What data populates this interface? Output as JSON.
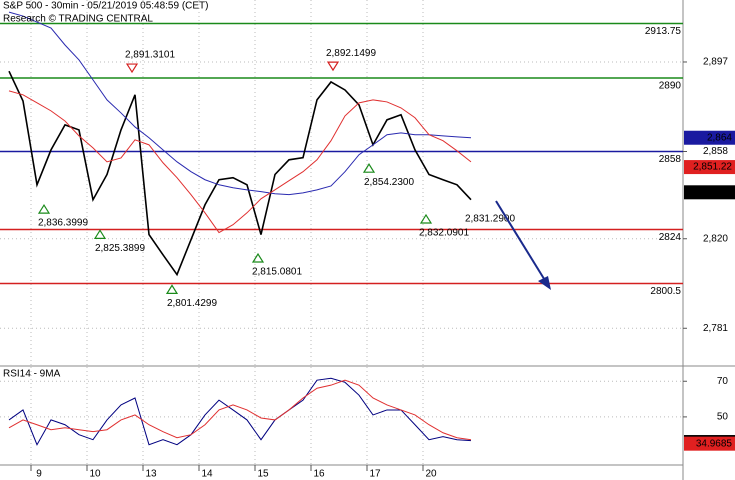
{
  "chart_data": [
    {
      "type": "line",
      "title": "S&P 500 - 30min - 05/21/2019 05:48:59 (CET)",
      "subtitle": "Research © TRADING CENTRAL",
      "categories": [
        null,
        null,
        "9",
        null,
        null,
        null,
        "10",
        null,
        null,
        null,
        "13",
        null,
        null,
        null,
        "14",
        null,
        null,
        null,
        "15",
        null,
        null,
        null,
        "16",
        null,
        null,
        null,
        "17",
        null,
        null,
        null,
        "20",
        null,
        null,
        null
      ],
      "series": [
        {
          "color": "#000000",
          "values": [
            2893,
            2880,
            2843.5,
            2858.7,
            2869.6,
            2867.4,
            2837,
            2848,
            2867.4,
            2882.7,
            2821.8,
            2813,
            2804.4,
            2819.6,
            2834.8,
            2845.7,
            2846.6,
            2843.5,
            2821.8,
            2848,
            2854.4,
            2855.3,
            2880.5,
            2888.3,
            2884.8,
            2878.3,
            2860.9,
            2871.8,
            2874,
            2858.7,
            2848,
            2845.7,
            2843.5,
            2837
          ]
        },
        {
          "color": "#2a2ab0",
          "values": [
            2918.7,
            2917,
            2914.4,
            2911.8,
            2904.4,
            2897.9,
            2889.2,
            2880.5,
            2874.8,
            2868.7,
            2864,
            2858.7,
            2853.5,
            2849.2,
            2845.7,
            2843.5,
            2842.2,
            2841.3,
            2840.5,
            2839.6,
            2839.2,
            2840,
            2841.3,
            2843,
            2849.2,
            2856.6,
            2860.9,
            2865.3,
            2866.1,
            2865.3,
            2865.3,
            2864.8,
            2864.4,
            2864
          ]
        },
        {
          "color": "#e03030",
          "values": [
            2884.4,
            2882.7,
            2879.2,
            2875.7,
            2871.3,
            2864.8,
            2859.6,
            2853.5,
            2855.2,
            2863.1,
            2860.9,
            2853.1,
            2846.6,
            2839.2,
            2831.3,
            2822.7,
            2826.1,
            2831.3,
            2837.4,
            2841.3,
            2845.3,
            2849.2,
            2854.4,
            2862.7,
            2873.5,
            2879.2,
            2880.5,
            2879.6,
            2877,
            2872.7,
            2865.3,
            2862.7,
            2858.3,
            2853.5
          ]
        }
      ],
      "ylim": [
        2765,
        2924
      ],
      "yticks": [
        {
          "value": 2897,
          "label": "2,897"
        },
        {
          "value": 2858,
          "label": "2,858"
        },
        {
          "value": 2820,
          "label": "2,820"
        },
        {
          "value": 2781,
          "label": "2,781"
        }
      ],
      "grid": true,
      "levels": [
        {
          "value": 2913.75,
          "color": "#1a8a1a"
        },
        {
          "value": 2890,
          "color": "#1a8a1a"
        },
        {
          "value": 2858,
          "color": "#1a1aa0"
        },
        {
          "value": 2824,
          "color": "#d42020"
        },
        {
          "value": 2800.5,
          "color": "#d42020"
        }
      ],
      "tags": [
        {
          "value": 2864,
          "label": "2,864",
          "color": "#1a1aa0"
        },
        {
          "value": 2851.22,
          "label": "2,851.22",
          "color": "#e02020"
        },
        {
          "value": 2840.23,
          "label": "2,840.23",
          "color": "#000000"
        }
      ],
      "annotations": [
        {
          "value": 2891.3101,
          "label": "2,891.3101"
        },
        {
          "value": 2892.1499,
          "label": "2,892.1499"
        },
        {
          "value": 2836.3999,
          "label": "2,836.3999"
        },
        {
          "value": 2825.3899,
          "label": "2,825.3899"
        },
        {
          "value": 2815.0801,
          "label": "2,815.0801"
        },
        {
          "value": 2801.4299,
          "label": "2,801.4299"
        },
        {
          "value": 2854.23,
          "label": "2,854.2300"
        },
        {
          "value": 2832.0901,
          "label": "2,832.0901"
        },
        {
          "value": 2831.29,
          "label": "2,831.2900"
        }
      ]
    },
    {
      "type": "line",
      "title": "RSI14 - 9MA",
      "series": [
        {
          "color": "#000080",
          "values": [
            48.3,
            53.9,
            34.4,
            48.3,
            45.6,
            40,
            37.2,
            48.3,
            56.7,
            60.6,
            34.4,
            37.2,
            34.4,
            40,
            51.1,
            59.4,
            53.9,
            48.3,
            37.2,
            48.3,
            53.9,
            59.4,
            70.6,
            71.7,
            69.4,
            62.2,
            51.1,
            53.9,
            53.9,
            45.6,
            37.2,
            38.9,
            37.2,
            36.7
          ]
        },
        {
          "color": "#e03030",
          "values": [
            43.9,
            48.3,
            45.6,
            42.8,
            43.9,
            42.8,
            41.7,
            42.8,
            48.3,
            51.1,
            45.6,
            41.7,
            38.3,
            40,
            45.6,
            53.9,
            56.7,
            53.9,
            49.4,
            48.3,
            53.9,
            60.6,
            66.1,
            67.8,
            70.6,
            67.8,
            60.6,
            56.7,
            53.9,
            51.1,
            45.6,
            41.1,
            38.3,
            37.2
          ]
        }
      ],
      "ylim": [
        23,
        78
      ],
      "yticks": [
        70,
        50
      ],
      "grid": true,
      "tags": [
        {
          "value": 35.8831,
          "color": "#000000"
        },
        {
          "value": 34.9685,
          "color": "#e02020"
        }
      ]
    }
  ]
}
